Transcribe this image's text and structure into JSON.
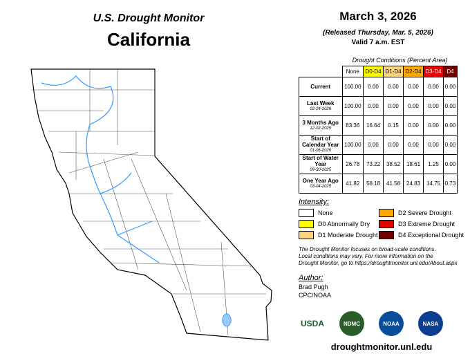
{
  "header": {
    "subtitle": "U.S. Drought Monitor",
    "title": "California",
    "date": "March 3, 2026",
    "released": "(Released Thursday, Mar. 5, 2026)",
    "valid": "Valid 7 a.m. EST"
  },
  "table": {
    "caption": "Drought Conditions (Percent Area)",
    "columns": [
      {
        "label": "None",
        "color": "#ffffff",
        "text_color": "#000000"
      },
      {
        "label": "D0-D4",
        "color": "#ffff00",
        "text_color": "#000000"
      },
      {
        "label": "D1-D4",
        "color": "#fcd37f",
        "text_color": "#000000"
      },
      {
        "label": "D2-D4",
        "color": "#ffaa00",
        "text_color": "#000000"
      },
      {
        "label": "D3-D4",
        "color": "#e60000",
        "text_color": "#ffffff"
      },
      {
        "label": "D4",
        "color": "#730000",
        "text_color": "#ffffff"
      }
    ],
    "rows": [
      {
        "label": "Current",
        "cells": [
          "100.00",
          "0.00",
          "0.00",
          "0.00",
          "0.00",
          "0.00"
        ]
      },
      {
        "label": "Last Week",
        "date": "02-24-2026",
        "cells": [
          "100.00",
          "0.00",
          "0.00",
          "0.00",
          "0.00",
          "0.00"
        ]
      },
      {
        "label": "3 Months Ago",
        "date": "12-02-2025",
        "cells": [
          "83.36",
          "16.64",
          "0.15",
          "0.00",
          "0.00",
          "0.00"
        ]
      },
      {
        "label": "Start of Calendar Year",
        "date": "01-06-2026",
        "cells": [
          "100.00",
          "0.00",
          "0.00",
          "0.00",
          "0.00",
          "0.00"
        ]
      },
      {
        "label": "Start of Water Year",
        "date": "09-30-2025",
        "cells": [
          "26.78",
          "73.22",
          "38.52",
          "18.61",
          "1.25",
          "0.00"
        ]
      },
      {
        "label": "One Year Ago",
        "date": "03-04-2025",
        "cells": [
          "41.82",
          "58.18",
          "41.58",
          "24.83",
          "14.75",
          "0.73"
        ]
      }
    ]
  },
  "legend": {
    "title": "Intensity:",
    "items": [
      {
        "label": "None",
        "color": "#ffffff"
      },
      {
        "label": "D2 Severe Drought",
        "color": "#ffaa00"
      },
      {
        "label": "D0 Abnormally Dry",
        "color": "#ffff00"
      },
      {
        "label": "D3 Extreme Drought",
        "color": "#e60000"
      },
      {
        "label": "D1 Moderate Drought",
        "color": "#fcd37f"
      },
      {
        "label": "D4 Exceptional Drought",
        "color": "#730000"
      }
    ]
  },
  "note": [
    "The Drought Monitor focuses on broad-scale conditions.",
    "Local conditions may vary. For more information on the",
    "Drought Monitor, go to https://droughtmonitor.unl.edu/About.aspx"
  ],
  "author": {
    "title": "Author:",
    "name": "Brad Pugh",
    "org": "CPC/NOAA"
  },
  "logos": [
    "USDA",
    "NDMC",
    "NOAA",
    "NASA"
  ],
  "url": "droughtmonitor.unl.edu"
}
